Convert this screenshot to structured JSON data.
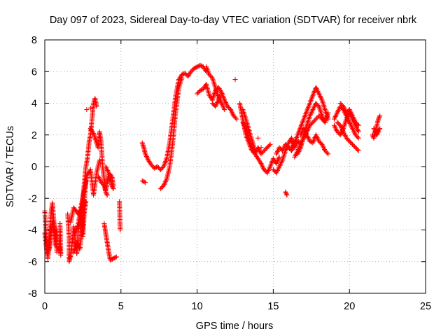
{
  "chart_data": {
    "type": "scatter",
    "title": "Day 097 of 2023, Sidereal Day-to-day VTEC variation (SDTVAR) for receiver nbrk",
    "xlabel": "GPS time / hours",
    "ylabel": "SDTVAR / TECUs",
    "xlim": [
      0,
      25
    ],
    "ylim": [
      -8,
      8
    ],
    "xticks": [
      0,
      5,
      10,
      15,
      20,
      25
    ],
    "yticks": [
      -8,
      -6,
      -4,
      -2,
      0,
      2,
      4,
      6,
      8
    ],
    "grid": true,
    "marker": "plus",
    "color": "#ff0000",
    "tracks": [
      [
        [
          0.0,
          -2.8
        ],
        [
          0.1,
          -4.5
        ],
        [
          0.2,
          -5.8
        ],
        [
          0.3,
          -4.8
        ],
        [
          0.4,
          -3.0
        ],
        [
          0.5,
          -2.3
        ],
        [
          0.6,
          -3.5
        ],
        [
          0.7,
          -5.0
        ],
        [
          0.8,
          -4.0
        ]
      ],
      [
        [
          0.0,
          -4.2
        ],
        [
          0.15,
          -5.5
        ],
        [
          0.3,
          -5.2
        ],
        [
          0.45,
          -3.8
        ],
        [
          0.55,
          -3.4
        ],
        [
          0.7,
          -4.2
        ],
        [
          0.8,
          -5.4
        ]
      ],
      [
        [
          1.0,
          -4.0
        ],
        [
          0.95,
          -5.0
        ],
        [
          1.05,
          -5.6
        ],
        [
          1.0,
          -3.6
        ]
      ],
      [
        [
          1.5,
          -3.0
        ],
        [
          1.6,
          -4.5
        ],
        [
          1.6,
          -6.0
        ],
        [
          1.7,
          -5.6
        ],
        [
          1.8,
          -4.8
        ],
        [
          1.9,
          -3.8
        ],
        [
          2.1,
          -5.5
        ],
        [
          2.2,
          -4.0
        ],
        [
          2.4,
          -3.0
        ],
        [
          2.5,
          -2.0
        ],
        [
          2.6,
          -1.0
        ],
        [
          2.7,
          0.0
        ],
        [
          2.8,
          0.5
        ],
        [
          2.9,
          1.5
        ],
        [
          3.0,
          2.0
        ],
        [
          3.1,
          3.0
        ],
        [
          3.2,
          4.0
        ],
        [
          3.3,
          4.3
        ],
        [
          3.4,
          3.8
        ]
      ],
      [
        [
          1.7,
          -3.5
        ],
        [
          1.9,
          -2.6
        ],
        [
          2.2,
          -3.0
        ],
        [
          2.4,
          -2.6
        ],
        [
          2.5,
          -4.4
        ],
        [
          2.6,
          -2.8
        ],
        [
          2.7,
          -2.2
        ]
      ],
      [
        [
          2.0,
          -4.2
        ],
        [
          2.2,
          -3.6
        ],
        [
          2.4,
          -2.4
        ],
        [
          2.6,
          -1.5
        ],
        [
          2.8,
          -0.5
        ],
        [
          3.0,
          -0.2
        ],
        [
          3.2,
          -1.8
        ],
        [
          3.4,
          -0.4
        ],
        [
          3.6,
          0.4
        ]
      ],
      [
        [
          1.9,
          -5.4
        ],
        [
          2.1,
          -4.8
        ],
        [
          2.3,
          -5.2
        ],
        [
          2.5,
          -3.5
        ],
        [
          2.7,
          -0.8
        ]
      ],
      [
        [
          3.0,
          2.4
        ],
        [
          3.2,
          2.1
        ],
        [
          3.3,
          1.8
        ],
        [
          3.5,
          1.2
        ],
        [
          3.6,
          2.2
        ],
        [
          3.7,
          1.5
        ],
        [
          3.8,
          0.0
        ],
        [
          3.9,
          -0.8
        ],
        [
          4.0,
          -1.5
        ],
        [
          4.1,
          -1.0
        ],
        [
          4.2,
          -0.5
        ],
        [
          4.3,
          -0.8
        ],
        [
          4.4,
          -1.2
        ],
        [
          4.5,
          -1.4
        ]
      ],
      [
        [
          3.5,
          -0.6
        ],
        [
          3.7,
          -1.0
        ],
        [
          3.9,
          -1.2
        ],
        [
          4.0,
          -1.6
        ],
        [
          4.1,
          -1.8
        ]
      ],
      [
        [
          3.9,
          -3.6
        ],
        [
          4.0,
          -4.2
        ],
        [
          4.1,
          -4.8
        ],
        [
          4.2,
          -5.4
        ],
        [
          4.3,
          -5.9
        ],
        [
          4.5,
          -5.8
        ],
        [
          4.7,
          -5.7
        ]
      ],
      [
        [
          4.0,
          0.0
        ],
        [
          4.2,
          -0.4
        ],
        [
          4.4,
          -0.6
        ],
        [
          4.5,
          -1.2
        ]
      ],
      [
        [
          4.9,
          -2.2
        ],
        [
          4.95,
          -4.0
        ]
      ],
      [
        [
          6.4,
          1.5
        ],
        [
          6.5,
          1.2
        ],
        [
          6.6,
          0.8
        ],
        [
          6.8,
          0.4
        ],
        [
          7.0,
          0.1
        ],
        [
          7.2,
          -0.1
        ],
        [
          7.4,
          0.0
        ],
        [
          7.6,
          -0.2
        ],
        [
          7.8,
          0.0
        ],
        [
          8.0,
          0.5
        ],
        [
          8.2,
          1.5
        ],
        [
          8.4,
          3.0
        ],
        [
          8.6,
          4.5
        ],
        [
          8.8,
          5.5
        ],
        [
          9.0,
          5.8
        ],
        [
          9.2,
          5.9
        ],
        [
          9.4,
          5.7
        ],
        [
          9.6,
          6.0
        ],
        [
          9.8,
          6.2
        ],
        [
          10.0,
          6.3
        ],
        [
          10.2,
          6.4
        ],
        [
          10.4,
          6.3
        ],
        [
          10.6,
          6.0
        ]
      ],
      [
        [
          6.4,
          -0.9
        ],
        [
          6.6,
          -1.0
        ]
      ],
      [
        [
          7.6,
          -1.4
        ],
        [
          7.8,
          -1.2
        ],
        [
          8.0,
          -0.8
        ],
        [
          8.2,
          0.0
        ],
        [
          8.4,
          1.5
        ],
        [
          8.6,
          3.5
        ],
        [
          8.8,
          5.0
        ],
        [
          9.0,
          5.6
        ]
      ],
      [
        [
          10.0,
          4.6
        ],
        [
          10.2,
          4.8
        ],
        [
          10.4,
          4.9
        ],
        [
          10.6,
          5.2
        ],
        [
          10.8,
          4.5
        ],
        [
          11.0,
          4.2
        ],
        [
          11.2,
          4.8
        ],
        [
          11.4,
          5.0
        ],
        [
          11.6,
          4.7
        ],
        [
          11.8,
          4.2
        ],
        [
          12.0,
          3.8
        ],
        [
          12.2,
          3.6
        ],
        [
          12.4,
          3.2
        ],
        [
          12.6,
          3.0
        ]
      ],
      [
        [
          10.6,
          6.3
        ],
        [
          10.8,
          5.8
        ],
        [
          11.0,
          5.6
        ],
        [
          11.2,
          5.0
        ],
        [
          11.4,
          4.4
        ],
        [
          11.6,
          4.0
        ],
        [
          11.8,
          3.6
        ]
      ],
      [
        [
          11.0,
          4.0
        ],
        [
          11.2,
          3.8
        ],
        [
          11.4,
          4.2
        ],
        [
          11.5,
          4.5
        ]
      ],
      [
        [
          12.8,
          4.0
        ],
        [
          12.9,
          3.5
        ],
        [
          13.0,
          3.0
        ],
        [
          13.1,
          2.5
        ],
        [
          13.2,
          2.0
        ],
        [
          13.4,
          1.5
        ],
        [
          13.6,
          1.0
        ],
        [
          13.8,
          0.8
        ],
        [
          14.0,
          0.5
        ],
        [
          14.2,
          0.2
        ],
        [
          14.4,
          -0.2
        ],
        [
          14.6,
          -0.4
        ],
        [
          14.8,
          0.0
        ],
        [
          15.0,
          0.5
        ],
        [
          15.2,
          0.2
        ],
        [
          15.4,
          0.6
        ]
      ],
      [
        [
          13.0,
          2.8
        ],
        [
          13.2,
          2.4
        ],
        [
          13.4,
          1.8
        ],
        [
          13.6,
          1.2
        ],
        [
          13.8,
          0.8
        ],
        [
          14.0,
          1.2
        ],
        [
          14.2,
          0.8
        ],
        [
          14.4,
          1.0
        ],
        [
          14.6,
          1.2
        ],
        [
          14.8,
          1.4
        ]
      ],
      [
        [
          13.0,
          3.6
        ],
        [
          13.2,
          3.0
        ],
        [
          13.5,
          2.0
        ],
        [
          13.8,
          1.0
        ]
      ],
      [
        [
          15.0,
          -0.2
        ],
        [
          15.2,
          -0.4
        ],
        [
          15.4,
          0.0
        ],
        [
          15.6,
          0.4
        ],
        [
          15.8,
          1.0
        ],
        [
          16.0,
          1.5
        ],
        [
          16.2,
          1.8
        ],
        [
          16.4,
          1.2
        ],
        [
          16.6,
          1.6
        ],
        [
          16.8,
          1.5
        ]
      ],
      [
        [
          15.8,
          -1.6
        ],
        [
          15.9,
          -1.8
        ]
      ],
      [
        [
          15.2,
          0.8
        ],
        [
          15.4,
          1.2
        ],
        [
          15.6,
          1.0
        ],
        [
          15.8,
          1.4
        ],
        [
          16.0,
          1.2
        ],
        [
          16.2,
          1.0
        ],
        [
          16.4,
          1.4
        ]
      ],
      [
        [
          16.2,
          1.2
        ],
        [
          16.4,
          1.5
        ],
        [
          16.6,
          2.0
        ],
        [
          16.8,
          2.5
        ],
        [
          17.0,
          3.0
        ],
        [
          17.2,
          3.5
        ],
        [
          17.4,
          4.0
        ],
        [
          17.6,
          4.5
        ],
        [
          17.8,
          5.0
        ],
        [
          18.0,
          4.6
        ],
        [
          18.2,
          4.2
        ],
        [
          18.4,
          3.6
        ],
        [
          18.6,
          3.0
        ]
      ],
      [
        [
          16.4,
          0.6
        ],
        [
          16.6,
          1.0
        ],
        [
          16.8,
          1.4
        ],
        [
          17.0,
          1.8
        ],
        [
          17.2,
          2.2
        ],
        [
          17.4,
          2.6
        ],
        [
          17.6,
          2.8
        ],
        [
          17.8,
          3.0
        ],
        [
          18.0,
          3.2
        ],
        [
          18.2,
          3.0
        ],
        [
          18.4,
          2.8
        ]
      ],
      [
        [
          16.6,
          0.8
        ],
        [
          16.8,
          1.2
        ],
        [
          17.0,
          2.0
        ],
        [
          17.2,
          2.6
        ],
        [
          17.4,
          3.2
        ],
        [
          17.6,
          3.6
        ],
        [
          17.8,
          4.0
        ],
        [
          18.0,
          3.8
        ],
        [
          18.2,
          3.2
        ],
        [
          18.4,
          2.8
        ],
        [
          18.6,
          3.4
        ]
      ],
      [
        [
          16.8,
          2.0
        ],
        [
          17.0,
          2.4
        ],
        [
          17.2,
          2.0
        ],
        [
          17.4,
          1.6
        ],
        [
          17.6,
          1.5
        ],
        [
          17.8,
          2.0
        ],
        [
          18.0,
          1.6
        ],
        [
          18.2,
          1.4
        ],
        [
          18.4,
          1.0
        ],
        [
          18.6,
          0.8
        ]
      ],
      [
        [
          19.0,
          3.0
        ],
        [
          19.2,
          3.4
        ],
        [
          19.4,
          3.8
        ],
        [
          19.6,
          3.6
        ],
        [
          19.8,
          3.2
        ],
        [
          20.0,
          2.8
        ],
        [
          20.2,
          2.4
        ],
        [
          20.4,
          2.0
        ],
        [
          20.6,
          1.8
        ]
      ],
      [
        [
          19.0,
          2.6
        ],
        [
          19.2,
          2.2
        ],
        [
          19.4,
          2.0
        ],
        [
          19.6,
          2.4
        ],
        [
          19.8,
          3.0
        ],
        [
          20.0,
          3.4
        ],
        [
          20.2,
          3.0
        ],
        [
          20.4,
          2.6
        ],
        [
          20.6,
          2.2
        ]
      ],
      [
        [
          19.2,
          2.8
        ],
        [
          19.4,
          2.6
        ],
        [
          19.6,
          2.2
        ],
        [
          19.8,
          1.8
        ],
        [
          20.0,
          1.6
        ],
        [
          20.2,
          1.4
        ],
        [
          20.4,
          1.2
        ],
        [
          20.6,
          1.0
        ]
      ],
      [
        [
          19.4,
          4.0
        ],
        [
          19.6,
          3.8
        ],
        [
          19.8,
          3.4
        ],
        [
          20.0,
          3.6
        ],
        [
          20.2,
          3.2
        ],
        [
          20.4,
          2.8
        ],
        [
          20.6,
          2.6
        ]
      ],
      [
        [
          21.5,
          2.0
        ],
        [
          21.6,
          1.8
        ],
        [
          21.7,
          2.2
        ],
        [
          21.8,
          2.6
        ],
        [
          21.9,
          3.0
        ],
        [
          22.0,
          3.2
        ]
      ],
      [
        [
          21.6,
          2.4
        ],
        [
          21.8,
          2.0
        ],
        [
          22.0,
          2.4
        ]
      ]
    ],
    "outliers": [
      [
        2.75,
        3.6
      ],
      [
        12.5,
        5.5
      ],
      [
        14.2,
        1.2
      ],
      [
        3.0,
        3.7
      ],
      [
        14.0,
        1.8
      ],
      [
        13.6,
        1.4
      ],
      [
        16.2,
        1.6
      ]
    ]
  }
}
